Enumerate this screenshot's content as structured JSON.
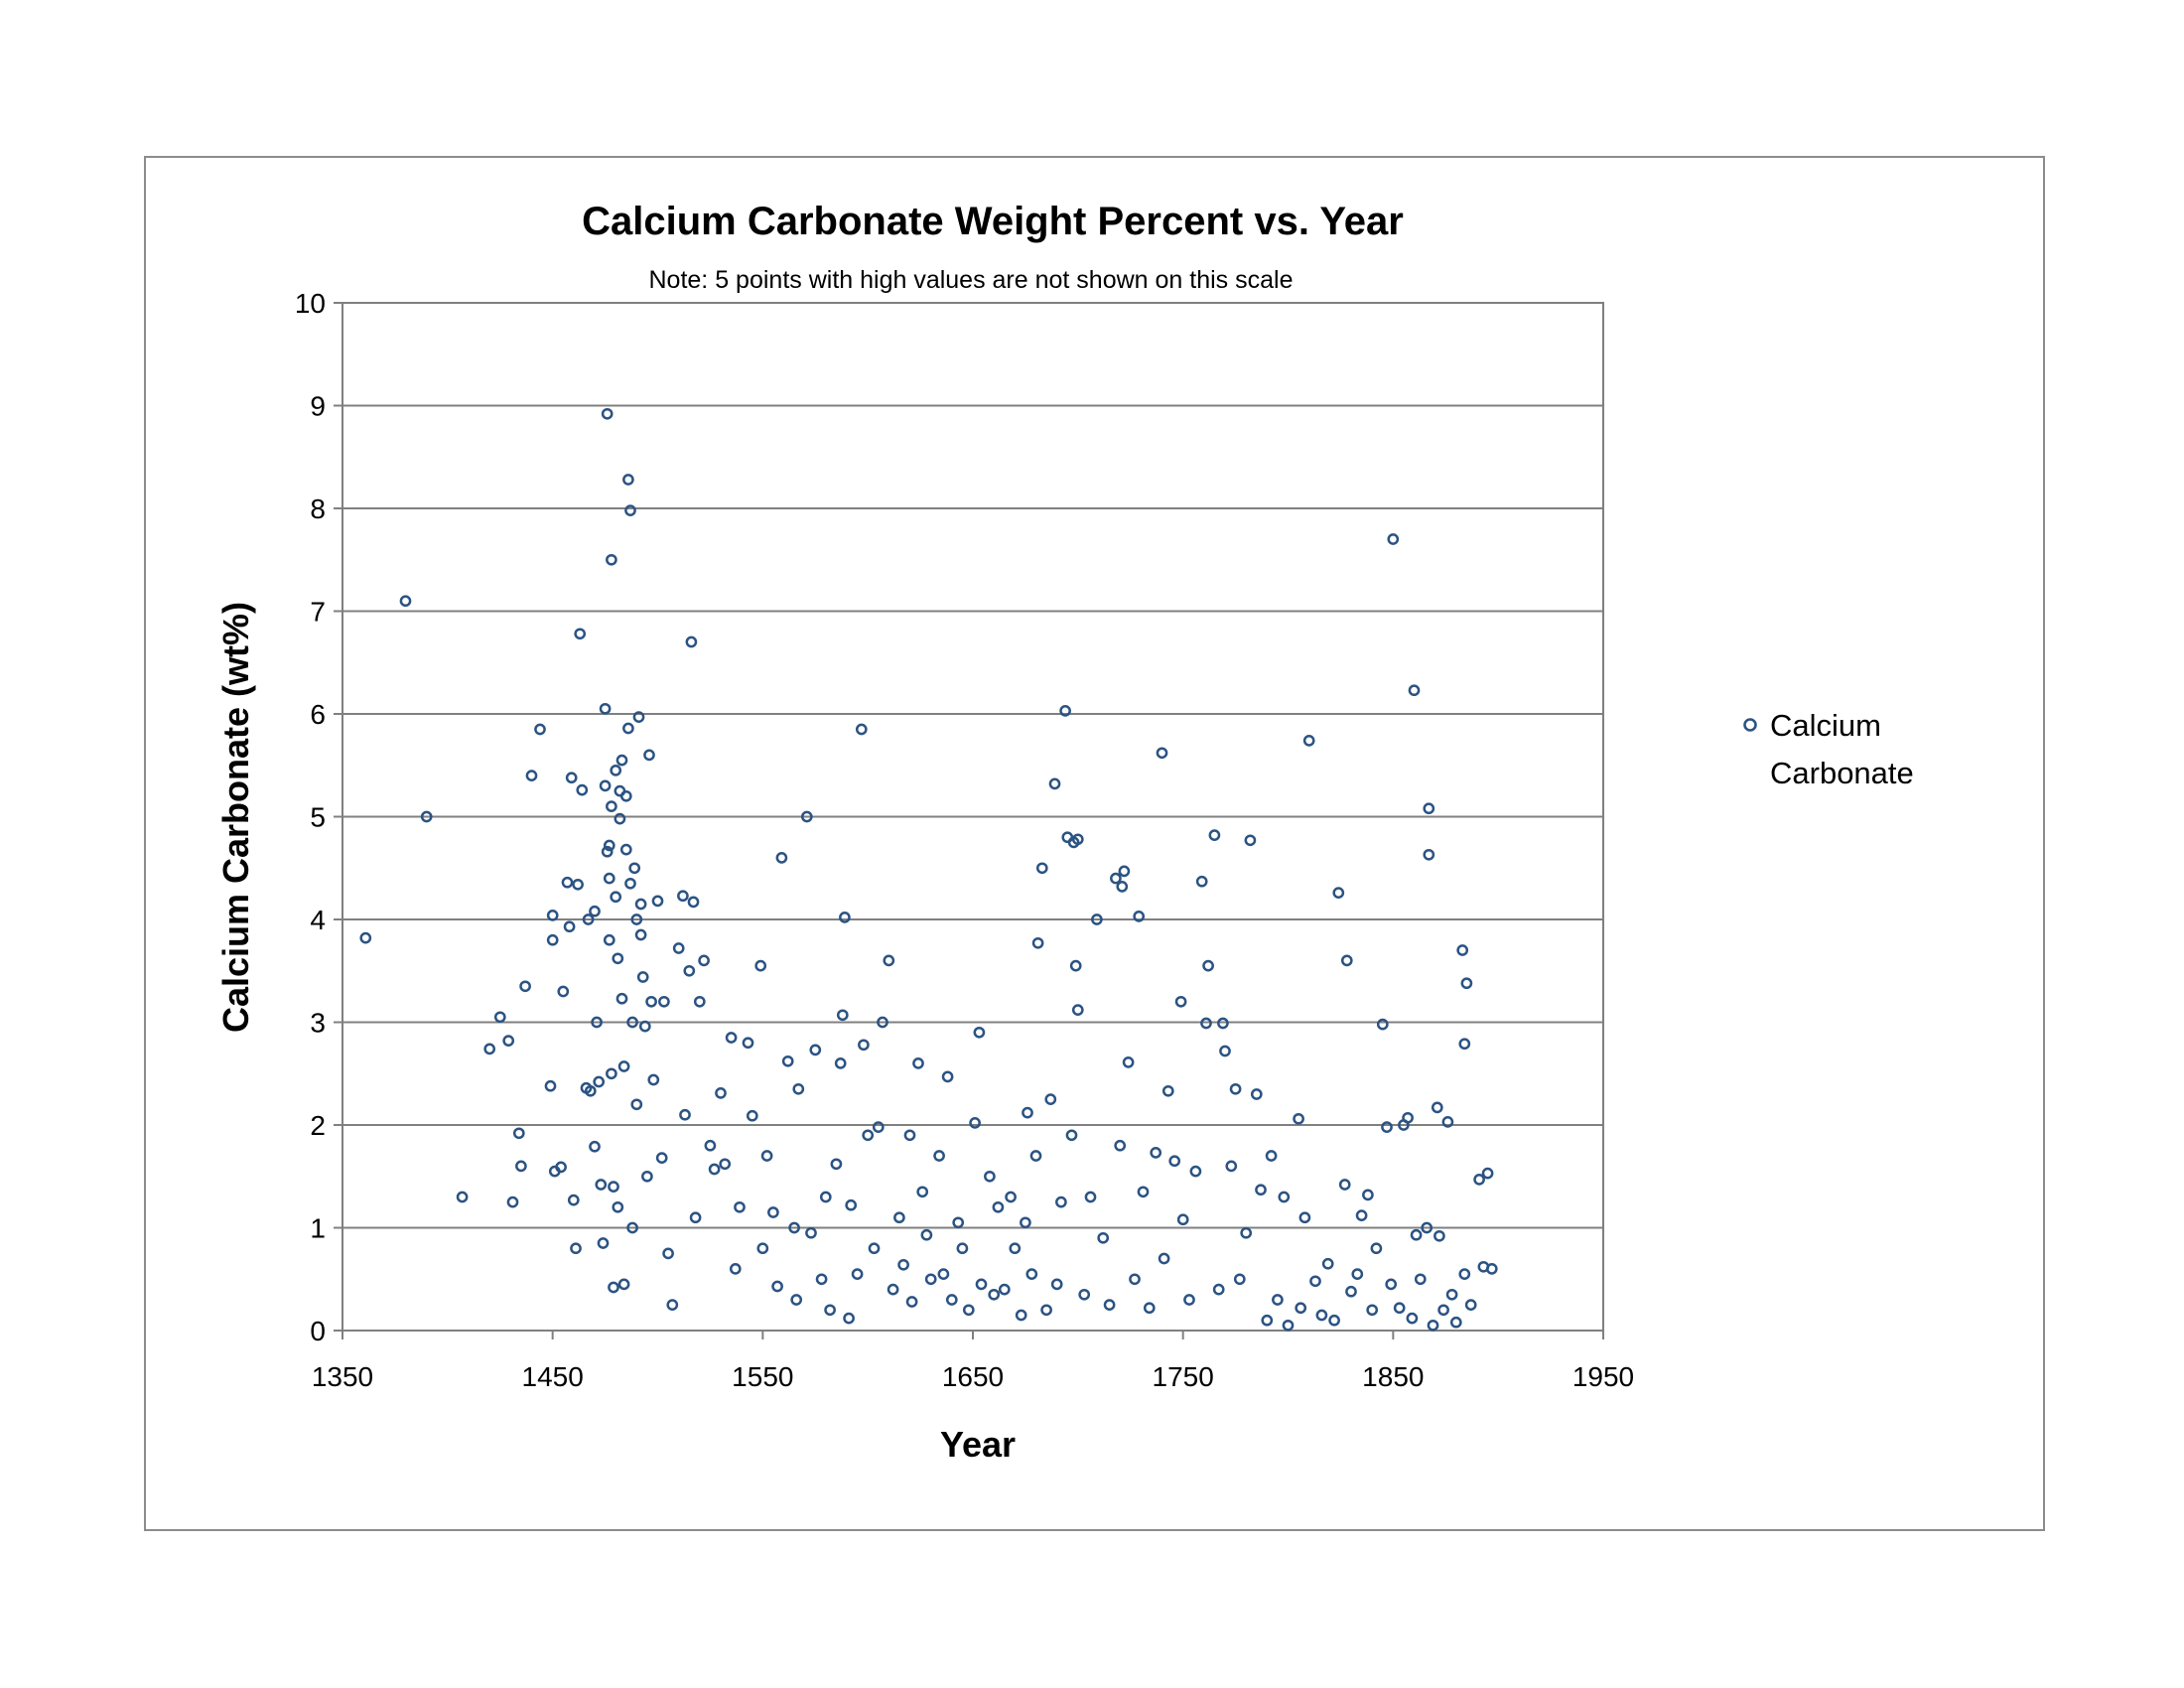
{
  "chart_data": {
    "type": "scatter",
    "title": "Calcium Carbonate Weight Percent vs. Year",
    "subtitle": "Note:  5 points with high values are not shown on this scale",
    "xlabel": "Year",
    "ylabel": "Calcium Carbonate   (wt%)",
    "xlim": [
      1350,
      1950
    ],
    "ylim": [
      0,
      10
    ],
    "xticks": [
      "1350",
      "1450",
      "1550",
      "1650",
      "1750",
      "1850",
      "1950"
    ],
    "yticks": [
      "0",
      "1",
      "2",
      "3",
      "4",
      "5",
      "6",
      "7",
      "8",
      "9",
      "10"
    ],
    "grid": "horizontal",
    "legend_position": "right",
    "marker_color": "#2b5383",
    "series": [
      {
        "name": "Calcium Carbonate",
        "points": [
          [
            1361,
            3.82
          ],
          [
            1380,
            7.1
          ],
          [
            1390,
            5.0
          ],
          [
            1407,
            1.3
          ],
          [
            1420,
            2.74
          ],
          [
            1425,
            3.05
          ],
          [
            1429,
            2.82
          ],
          [
            1431,
            1.25
          ],
          [
            1434,
            1.92
          ],
          [
            1435,
            1.6
          ],
          [
            1437,
            3.35
          ],
          [
            1440,
            5.4
          ],
          [
            1444,
            5.85
          ],
          [
            1449,
            2.38
          ],
          [
            1450,
            4.04
          ],
          [
            1450,
            3.8
          ],
          [
            1451,
            1.55
          ],
          [
            1454,
            1.59
          ],
          [
            1455,
            3.3
          ],
          [
            1457,
            4.36
          ],
          [
            1458,
            3.93
          ],
          [
            1459,
            5.38
          ],
          [
            1460,
            1.27
          ],
          [
            1461,
            0.8
          ],
          [
            1462,
            4.34
          ],
          [
            1463,
            6.78
          ],
          [
            1464,
            5.26
          ],
          [
            1466,
            2.36
          ],
          [
            1467,
            4.0
          ],
          [
            1468,
            2.33
          ],
          [
            1470,
            4.08
          ],
          [
            1470,
            1.79
          ],
          [
            1471,
            3.0
          ],
          [
            1472,
            2.42
          ],
          [
            1473,
            1.42
          ],
          [
            1474,
            0.85
          ],
          [
            1475,
            6.05
          ],
          [
            1475,
            5.3
          ],
          [
            1476,
            8.92
          ],
          [
            1476,
            4.66
          ],
          [
            1477,
            4.72
          ],
          [
            1477,
            4.4
          ],
          [
            1477,
            3.8
          ],
          [
            1478,
            5.1
          ],
          [
            1478,
            7.5
          ],
          [
            1478,
            2.5
          ],
          [
            1479,
            1.4
          ],
          [
            1479,
            0.42
          ],
          [
            1480,
            5.45
          ],
          [
            1480,
            4.22
          ],
          [
            1481,
            3.62
          ],
          [
            1481,
            1.2
          ],
          [
            1482,
            5.25
          ],
          [
            1482,
            4.98
          ],
          [
            1483,
            5.55
          ],
          [
            1483,
            3.23
          ],
          [
            1484,
            2.57
          ],
          [
            1484,
            0.45
          ],
          [
            1485,
            4.68
          ],
          [
            1485,
            5.2
          ],
          [
            1486,
            8.28
          ],
          [
            1486,
            5.86
          ],
          [
            1487,
            7.98
          ],
          [
            1487,
            4.35
          ],
          [
            1488,
            3.0
          ],
          [
            1488,
            1.0
          ],
          [
            1489,
            4.5
          ],
          [
            1490,
            4.0
          ],
          [
            1490,
            2.2
          ],
          [
            1491,
            5.97
          ],
          [
            1492,
            4.15
          ],
          [
            1492,
            3.85
          ],
          [
            1493,
            3.44
          ],
          [
            1494,
            2.96
          ],
          [
            1495,
            1.5
          ],
          [
            1496,
            5.6
          ],
          [
            1497,
            3.2
          ],
          [
            1498,
            2.44
          ],
          [
            1500,
            4.18
          ],
          [
            1502,
            1.68
          ],
          [
            1503,
            3.2
          ],
          [
            1505,
            0.75
          ],
          [
            1507,
            0.25
          ],
          [
            1510,
            3.72
          ],
          [
            1512,
            4.23
          ],
          [
            1513,
            2.1
          ],
          [
            1515,
            3.5
          ],
          [
            1516,
            6.7
          ],
          [
            1517,
            4.17
          ],
          [
            1518,
            1.1
          ],
          [
            1520,
            3.2
          ],
          [
            1522,
            3.6
          ],
          [
            1525,
            1.8
          ],
          [
            1527,
            1.57
          ],
          [
            1530,
            2.31
          ],
          [
            1532,
            1.62
          ],
          [
            1535,
            2.85
          ],
          [
            1537,
            0.6
          ],
          [
            1539,
            1.2
          ],
          [
            1543,
            2.8
          ],
          [
            1545,
            2.09
          ],
          [
            1549,
            3.55
          ],
          [
            1550,
            0.8
          ],
          [
            1552,
            1.7
          ],
          [
            1555,
            1.15
          ],
          [
            1557,
            0.43
          ],
          [
            1559,
            4.6
          ],
          [
            1562,
            2.62
          ],
          [
            1565,
            1.0
          ],
          [
            1566,
            0.3
          ],
          [
            1567,
            2.35
          ],
          [
            1571,
            5.0
          ],
          [
            1573,
            0.95
          ],
          [
            1575,
            2.73
          ],
          [
            1578,
            0.5
          ],
          [
            1580,
            1.3
          ],
          [
            1582,
            0.2
          ],
          [
            1585,
            1.62
          ],
          [
            1587,
            2.6
          ],
          [
            1588,
            3.07
          ],
          [
            1589,
            4.02
          ],
          [
            1591,
            0.12
          ],
          [
            1592,
            1.22
          ],
          [
            1595,
            0.55
          ],
          [
            1597,
            5.85
          ],
          [
            1598,
            2.78
          ],
          [
            1600,
            1.9
          ],
          [
            1603,
            0.8
          ],
          [
            1605,
            1.98
          ],
          [
            1607,
            3.0
          ],
          [
            1610,
            3.6
          ],
          [
            1612,
            0.4
          ],
          [
            1615,
            1.1
          ],
          [
            1617,
            0.64
          ],
          [
            1620,
            1.9
          ],
          [
            1621,
            0.28
          ],
          [
            1624,
            2.6
          ],
          [
            1626,
            1.35
          ],
          [
            1628,
            0.93
          ],
          [
            1630,
            0.5
          ],
          [
            1634,
            1.7
          ],
          [
            1636,
            0.55
          ],
          [
            1638,
            2.47
          ],
          [
            1640,
            0.3
          ],
          [
            1643,
            1.05
          ],
          [
            1645,
            0.8
          ],
          [
            1648,
            0.2
          ],
          [
            1651,
            2.02
          ],
          [
            1653,
            2.9
          ],
          [
            1654,
            0.45
          ],
          [
            1658,
            1.5
          ],
          [
            1660,
            0.35
          ],
          [
            1662,
            1.2
          ],
          [
            1665,
            0.4
          ],
          [
            1668,
            1.3
          ],
          [
            1670,
            0.8
          ],
          [
            1673,
            0.15
          ],
          [
            1675,
            1.05
          ],
          [
            1676,
            2.12
          ],
          [
            1678,
            0.55
          ],
          [
            1680,
            1.7
          ],
          [
            1681,
            3.77
          ],
          [
            1683,
            4.5
          ],
          [
            1685,
            0.2
          ],
          [
            1687,
            2.25
          ],
          [
            1689,
            5.32
          ],
          [
            1690,
            0.45
          ],
          [
            1692,
            1.25
          ],
          [
            1694,
            6.03
          ],
          [
            1695,
            4.8
          ],
          [
            1697,
            1.9
          ],
          [
            1698,
            4.75
          ],
          [
            1699,
            3.55
          ],
          [
            1700,
            3.12
          ],
          [
            1700,
            4.78
          ],
          [
            1703,
            0.35
          ],
          [
            1706,
            1.3
          ],
          [
            1709,
            4.0
          ],
          [
            1712,
            0.9
          ],
          [
            1715,
            0.25
          ],
          [
            1718,
            4.4
          ],
          [
            1720,
            1.8
          ],
          [
            1721,
            4.32
          ],
          [
            1722,
            4.47
          ],
          [
            1724,
            2.61
          ],
          [
            1727,
            0.5
          ],
          [
            1729,
            4.03
          ],
          [
            1731,
            1.35
          ],
          [
            1734,
            0.22
          ],
          [
            1737,
            1.73
          ],
          [
            1740,
            5.62
          ],
          [
            1741,
            0.7
          ],
          [
            1743,
            2.33
          ],
          [
            1746,
            1.65
          ],
          [
            1749,
            3.2
          ],
          [
            1750,
            1.08
          ],
          [
            1753,
            0.3
          ],
          [
            1756,
            1.55
          ],
          [
            1759,
            4.37
          ],
          [
            1761,
            2.99
          ],
          [
            1762,
            3.55
          ],
          [
            1765,
            4.82
          ],
          [
            1767,
            0.4
          ],
          [
            1769,
            2.99
          ],
          [
            1770,
            2.72
          ],
          [
            1773,
            1.6
          ],
          [
            1775,
            2.35
          ],
          [
            1777,
            0.5
          ],
          [
            1780,
            0.95
          ],
          [
            1782,
            4.77
          ],
          [
            1785,
            2.3
          ],
          [
            1787,
            1.37
          ],
          [
            1790,
            0.1
          ],
          [
            1792,
            1.7
          ],
          [
            1795,
            0.3
          ],
          [
            1798,
            1.3
          ],
          [
            1800,
            0.05
          ],
          [
            1805,
            2.06
          ],
          [
            1806,
            0.22
          ],
          [
            1808,
            1.1
          ],
          [
            1810,
            5.74
          ],
          [
            1813,
            0.48
          ],
          [
            1816,
            0.15
          ],
          [
            1819,
            0.65
          ],
          [
            1822,
            0.1
          ],
          [
            1824,
            4.26
          ],
          [
            1827,
            1.42
          ],
          [
            1828,
            3.6
          ],
          [
            1830,
            0.38
          ],
          [
            1833,
            0.55
          ],
          [
            1835,
            1.12
          ],
          [
            1838,
            1.32
          ],
          [
            1840,
            0.2
          ],
          [
            1842,
            0.8
          ],
          [
            1845,
            2.98
          ],
          [
            1847,
            1.98
          ],
          [
            1849,
            0.45
          ],
          [
            1850,
            7.7
          ],
          [
            1853,
            0.22
          ],
          [
            1855,
            2.0
          ],
          [
            1857,
            2.07
          ],
          [
            1859,
            0.12
          ],
          [
            1860,
            6.23
          ],
          [
            1861,
            0.93
          ],
          [
            1863,
            0.5
          ],
          [
            1866,
            1.0
          ],
          [
            1867,
            5.08
          ],
          [
            1867,
            4.63
          ],
          [
            1869,
            0.05
          ],
          [
            1871,
            2.17
          ],
          [
            1872,
            0.92
          ],
          [
            1874,
            0.2
          ],
          [
            1876,
            2.03
          ],
          [
            1878,
            0.35
          ],
          [
            1880,
            0.08
          ],
          [
            1883,
            3.7
          ],
          [
            1884,
            2.79
          ],
          [
            1884,
            0.55
          ],
          [
            1885,
            3.38
          ],
          [
            1887,
            0.25
          ],
          [
            1891,
            1.47
          ],
          [
            1893,
            0.62
          ],
          [
            1895,
            1.53
          ],
          [
            1897,
            0.6
          ]
        ]
      }
    ]
  }
}
